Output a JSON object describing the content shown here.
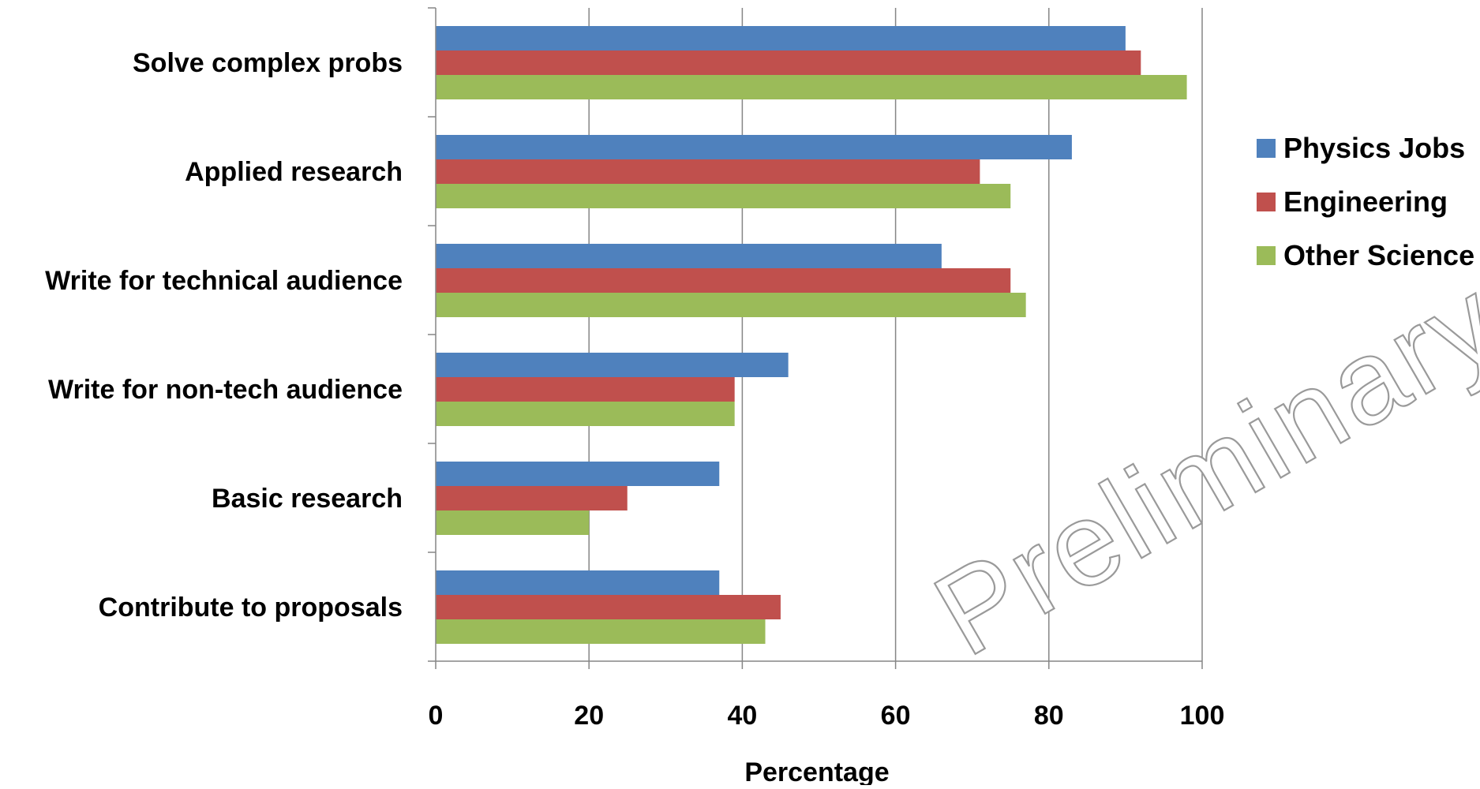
{
  "chart_data": {
    "type": "bar",
    "orientation": "horizontal",
    "categories": [
      "Solve complex probs",
      "Applied research",
      "Write for technical audience",
      "Write for non-tech audience",
      "Basic research",
      "Contribute to proposals"
    ],
    "series": [
      {
        "name": "Physics Jobs",
        "color": "#4F81BD",
        "values": [
          90,
          83,
          66,
          46,
          37,
          37
        ]
      },
      {
        "name": "Engineering",
        "color": "#C0504D",
        "values": [
          92,
          71,
          75,
          39,
          25,
          45
        ]
      },
      {
        "name": "Other Science",
        "color": "#9BBB59",
        "values": [
          98,
          75,
          77,
          39,
          20,
          43
        ]
      }
    ],
    "xlabel": "Percentage",
    "xlim": [
      0,
      100
    ],
    "xticks": [
      "0",
      "20",
      "40",
      "60",
      "80",
      "100"
    ],
    "grid": true,
    "legend_position": "right",
    "watermark": "Preliminary"
  }
}
